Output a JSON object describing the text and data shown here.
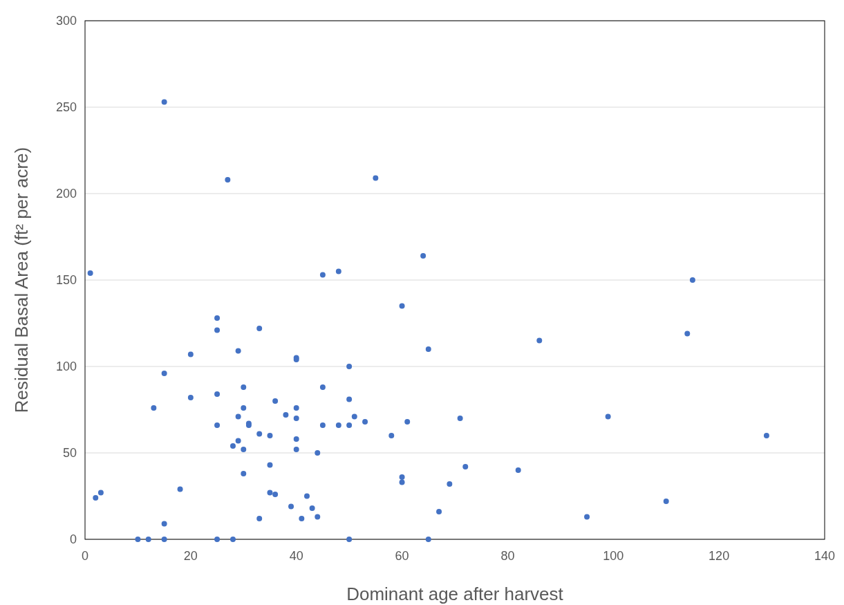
{
  "chart_data": {
    "type": "scatter",
    "xlabel": "Dominant age after harvest",
    "ylabel": "Residual Basal Area (ft² per acre)",
    "xlim": [
      0,
      140
    ],
    "xticks": [
      0,
      20,
      40,
      60,
      80,
      100,
      120,
      140
    ],
    "ylim": [
      0,
      300
    ],
    "yticks": [
      0,
      50,
      100,
      150,
      200,
      250,
      300
    ],
    "grid": "y",
    "marker": "circle",
    "series": [
      {
        "color": "#4472c4",
        "x": [
          1,
          2,
          3,
          10,
          12,
          15,
          15,
          15,
          15,
          13,
          18,
          20,
          20,
          25,
          25,
          25,
          25,
          25,
          27,
          28,
          28,
          29,
          29,
          29,
          30,
          30,
          30,
          30,
          31,
          31,
          33,
          33,
          33,
          35,
          35,
          35,
          36,
          36,
          38,
          39,
          40,
          40,
          40,
          40,
          40,
          40,
          41,
          42,
          43,
          44,
          44,
          45,
          45,
          45,
          48,
          48,
          50,
          50,
          50,
          50,
          51,
          53,
          55,
          58,
          60,
          60,
          60,
          61,
          64,
          65,
          65,
          67,
          69,
          71,
          72,
          82,
          86,
          95,
          99,
          110,
          114,
          115,
          129
        ],
        "values": [
          154,
          24,
          27,
          0,
          0,
          0,
          9,
          96,
          253,
          76,
          29,
          107,
          82,
          0,
          66,
          84,
          121,
          128,
          208,
          0,
          54,
          57,
          71,
          109,
          88,
          76,
          52,
          38,
          67,
          66,
          61,
          122,
          12,
          60,
          43,
          27,
          80,
          26,
          72,
          19,
          105,
          104,
          76,
          70,
          58,
          52,
          12,
          25,
          18,
          13,
          50,
          153,
          88,
          66,
          155,
          66,
          100,
          81,
          66,
          0,
          71,
          68,
          209,
          60,
          135,
          36,
          33,
          68,
          164,
          110,
          0,
          16,
          32,
          70,
          42,
          40,
          115,
          13,
          71,
          22,
          119,
          150,
          60
        ]
      }
    ]
  }
}
